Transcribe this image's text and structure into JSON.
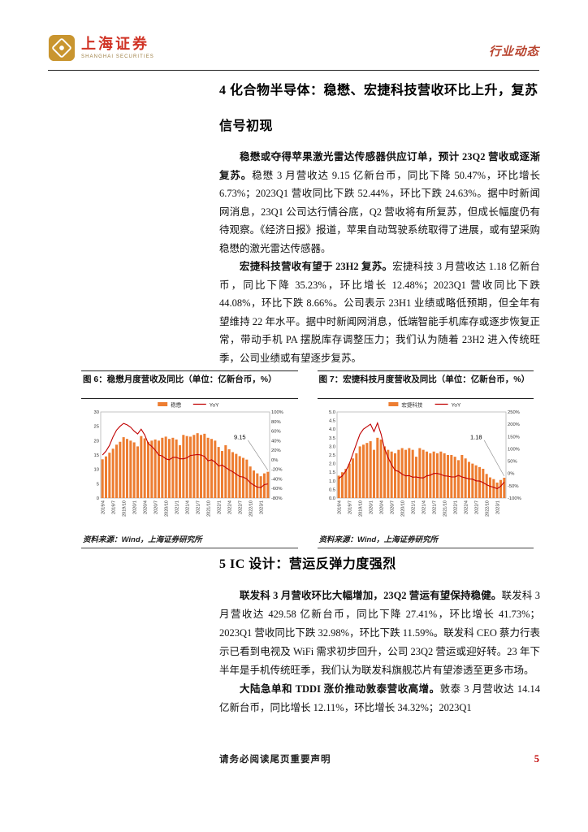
{
  "header": {
    "brand_name": "上海证券",
    "brand_subtitle": "SHANGHAI SECURITIES",
    "report_type": "行业动态"
  },
  "sections": [
    {
      "heading": "4 化合物半导体：稳懋、宏捷科技营收环比上升，复苏信号初现",
      "paragraphs": [
        {
          "lead": "稳懋或夺得苹果激光雷达传感器供应订单，预计 23Q2 营收或逐渐复苏。",
          "rest": "稳懋 3 月营收达 9.15 亿新台币，同比下降 50.47%，环比增长 6.73%；2023Q1 营收同比下跌 52.44%，环比下跌 24.63%。据中时新闻网消息，23Q1 公司达行情谷底，Q2 营收将有所复苏，但成长幅度仍有待观察。《经济日报》报道，苹果自动驾驶系统取得了进展，或有望采购稳懋的激光雷达传感器。"
        },
        {
          "lead": "宏捷科技营收有望于 23H2 复苏。",
          "rest": "宏捷科技 3 月营收达 1.18 亿新台币，同比下降 35.23%，环比增长 12.48%；2023Q1 营收同比下跌 44.08%，环比下跌 8.66%。公司表示 23H1 业绩或略低预期，但全年有望维持 22 年水平。据中时新闻网消息，低端智能手机库存或逐步恢复正常，带动手机 PA 摆脱库存调整压力；我们认为随着 23H2 进入传统旺季，公司业绩或有望逐步复苏。"
        }
      ]
    },
    {
      "heading": "5 IC 设计：营运反弹力度强烈",
      "paragraphs": [
        {
          "lead": "联发科 3 月营收环比大幅增加，23Q2 营运有望保持稳健。",
          "rest": "联发科 3 月营收达 429.58 亿新台币，同比下降 27.41%，环比增长 41.73%；2023Q1 营收同比下跌 32.98%，环比下跌 11.59%。联发科 CEO 蔡力行表示已看到电视及 WiFi 需求初步回升，公司 23Q2 营运或迎好转。23 年下半年是手机传统旺季，我们认为联发科旗舰芯片有望渗透至更多市场。"
        },
        {
          "lead": "大陆急单和 TDDI 涨价推动敦泰营收高增。",
          "rest": "敦泰 3 月营收达 14.14 亿新台币，同比增长 12.11%，环比增长 34.32%；2023Q1"
        }
      ]
    }
  ],
  "figures": [
    {
      "caption": "图 6：稳懋月度营收及同比（单位：亿新台币，%）",
      "source": "资料来源：Wind，上海证券研究所"
    },
    {
      "caption": "图 7：宏捷科技月度营收及同比（单位：亿新台币，%）",
      "source": "资料来源：Wind，上海证券研究所"
    }
  ],
  "chart_data": [
    {
      "type": "bar+line",
      "title": "图 6：稳懋月度营收及同比（单位：亿新台币，%）",
      "legend": [
        "稳懋",
        "YoY"
      ],
      "bar_color": "#ED7D31",
      "line_color": "#C00000",
      "x_tick_every": 3,
      "x": [
        "2019/4",
        "2019/5",
        "2019/6",
        "2019/7",
        "2019/8",
        "2019/9",
        "2019/10",
        "2019/11",
        "2019/12",
        "2020/1",
        "2020/2",
        "2020/3",
        "2020/4",
        "2020/5",
        "2020/6",
        "2020/7",
        "2020/8",
        "2020/9",
        "2020/10",
        "2020/11",
        "2020/12",
        "2021/1",
        "2021/2",
        "2021/3",
        "2021/4",
        "2021/5",
        "2021/6",
        "2021/7",
        "2021/8",
        "2021/9",
        "2021/10",
        "2021/11",
        "2021/12",
        "2022/1",
        "2022/2",
        "2022/3",
        "2022/4",
        "2022/5",
        "2022/6",
        "2022/7",
        "2022/8",
        "2022/9",
        "2022/10",
        "2022/11",
        "2022/12",
        "2023/1",
        "2023/2",
        "2023/3"
      ],
      "bars": [
        13.5,
        14.5,
        15.8,
        17.2,
        18.6,
        19.6,
        21.2,
        20.6,
        20.0,
        19.4,
        18.0,
        21.6,
        20.8,
        19.6,
        20.0,
        20.4,
        20.0,
        21.0,
        21.4,
        20.6,
        21.0,
        20.4,
        18.4,
        22.0,
        21.6,
        21.4,
        22.0,
        22.6,
        22.0,
        22.4,
        21.0,
        20.6,
        20.0,
        17.8,
        16.4,
        18.4,
        17.0,
        16.0,
        15.4,
        14.6,
        14.0,
        13.4,
        11.0,
        9.6,
        8.6,
        7.6,
        8.6,
        9.15
      ],
      "yoy": [
        10,
        18,
        30,
        48,
        62,
        70,
        76,
        73,
        68,
        60,
        54,
        64,
        52,
        34,
        28,
        20,
        10,
        8,
        2,
        0,
        5,
        5,
        2,
        2,
        4,
        9,
        10,
        11,
        10,
        7,
        -2,
        0,
        -5,
        -13,
        -11,
        -16,
        -21,
        -25,
        -30,
        -35,
        -36,
        -40,
        -48,
        -53,
        -57,
        -58,
        -52,
        -50.47
      ],
      "left_axis": {
        "min": 0,
        "max": 30,
        "step": 5,
        "decimals": 0
      },
      "right_axis": {
        "min": -80,
        "max": 100,
        "step": 20,
        "suffix": "%"
      },
      "callout": "9.15"
    },
    {
      "type": "bar+line",
      "title": "图 7：宏捷科技月度营收及同比（单位：亿新台币，%）",
      "legend": [
        "宏捷科技",
        "YoY"
      ],
      "bar_color": "#ED7D31",
      "line_color": "#C00000",
      "x_tick_every": 3,
      "x": [
        "2019/4",
        "2019/5",
        "2019/6",
        "2019/7",
        "2019/8",
        "2019/9",
        "2019/10",
        "2019/11",
        "2019/12",
        "2020/1",
        "2020/2",
        "2020/3",
        "2020/4",
        "2020/5",
        "2020/6",
        "2020/7",
        "2020/8",
        "2020/9",
        "2020/10",
        "2020/11",
        "2020/12",
        "2021/1",
        "2021/2",
        "2021/3",
        "2021/4",
        "2021/5",
        "2021/6",
        "2021/7",
        "2021/8",
        "2021/9",
        "2021/10",
        "2021/11",
        "2021/12",
        "2022/1",
        "2022/2",
        "2022/3",
        "2022/4",
        "2022/5",
        "2022/6",
        "2022/7",
        "2022/8",
        "2022/9",
        "2022/10",
        "2022/11",
        "2022/12",
        "2023/1",
        "2023/2",
        "2023/3"
      ],
      "bars": [
        1.3,
        1.5,
        1.7,
        2.0,
        2.3,
        2.6,
        3.0,
        3.1,
        3.2,
        3.3,
        2.8,
        3.5,
        3.4,
        3.0,
        2.8,
        2.7,
        2.6,
        2.8,
        2.9,
        2.8,
        2.9,
        2.8,
        2.4,
        2.9,
        2.8,
        2.7,
        2.6,
        2.7,
        2.6,
        2.7,
        2.6,
        2.5,
        2.5,
        2.4,
        2.2,
        2.5,
        2.3,
        2.1,
        2.0,
        1.9,
        1.8,
        1.7,
        1.4,
        1.2,
        1.1,
        0.9,
        1.05,
        1.18
      ],
      "yoy": [
        -20,
        -10,
        10,
        40,
        80,
        120,
        160,
        180,
        190,
        200,
        170,
        205,
        160,
        100,
        65,
        35,
        13,
        8,
        -3,
        -10,
        -9,
        -15,
        -14,
        -17,
        -18,
        -10,
        -7,
        0,
        0,
        -4,
        -10,
        -11,
        -14,
        -14,
        -8,
        -14,
        -18,
        -22,
        -23,
        -30,
        -31,
        -37,
        -46,
        -52,
        -56,
        -62,
        -52,
        -35.23
      ],
      "left_axis": {
        "min": 0,
        "max": 5,
        "step": 0.5,
        "decimals": 1
      },
      "right_axis": {
        "min": -100,
        "max": 250,
        "step": 50,
        "suffix": "%"
      },
      "callout": "1.18"
    }
  ],
  "footer": {
    "disclaimer": "请务必阅读尾页重要声明",
    "page_number": "5"
  },
  "colors": {
    "bar_orange": "#ED7D31",
    "line_red": "#C00000",
    "brand_red": "#D03325",
    "accent_red": "#B8442F",
    "page_number_red": "#C00000"
  }
}
